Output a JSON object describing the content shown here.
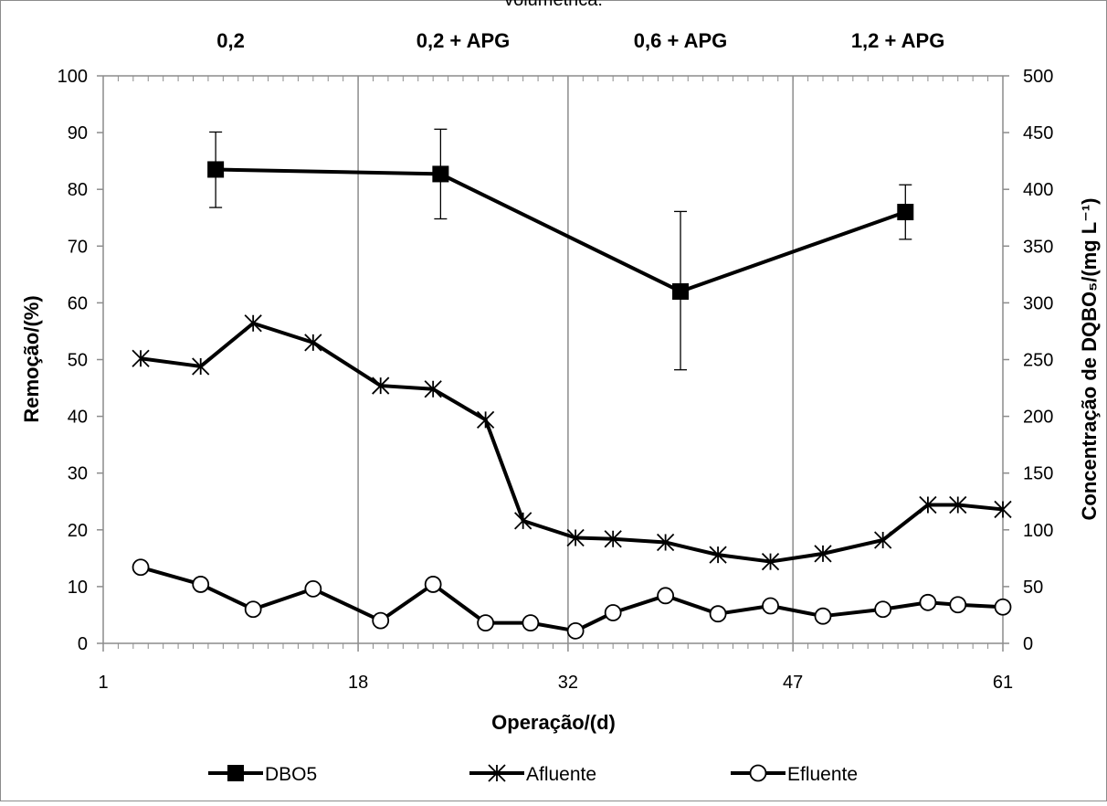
{
  "chart_data": {
    "type": "line",
    "top_caption": "volumétrica:",
    "xlabel": "Operação/(d)",
    "ylabel_left": "Remoção/(%)",
    "ylabel_right": "Concentração de DQBO₅/(mg L⁻¹)",
    "xlim": [
      1,
      61
    ],
    "ylim_left": [
      0,
      100
    ],
    "ylim_right": [
      0,
      500
    ],
    "x_ticks": [
      1,
      18,
      32,
      47,
      61
    ],
    "y_left_ticks": [
      0,
      10,
      20,
      30,
      40,
      50,
      60,
      70,
      80,
      90,
      100
    ],
    "y_right_ticks": [
      0,
      50,
      100,
      150,
      200,
      250,
      300,
      350,
      400,
      450,
      500
    ],
    "phase_dividers": [
      18,
      32,
      47
    ],
    "phases": [
      {
        "label": "0,2",
        "center": 9.5
      },
      {
        "label": "0,2 + APG",
        "center": 25
      },
      {
        "label": "0,6 + APG",
        "center": 39.5
      },
      {
        "label": "1,2 + APG",
        "center": 54
      }
    ],
    "grid": false,
    "legend_position": "bottom",
    "series": [
      {
        "name": "DBO5",
        "axis": "left",
        "marker": "square",
        "color": "#000000",
        "x": [
          8.5,
          23.5,
          39.5,
          54.5
        ],
        "y": [
          83.5,
          82.7,
          62.0,
          76.0
        ],
        "err_low": [
          76.8,
          74.8,
          48.2,
          71.2
        ],
        "err_high": [
          90.1,
          90.6,
          76.1,
          80.8
        ]
      },
      {
        "name": "Afluente",
        "axis": "right",
        "marker": "asterisk",
        "color": "#000000",
        "x": [
          3.5,
          7.5,
          11,
          15,
          19.5,
          23,
          26.5,
          29,
          32.5,
          35,
          38.5,
          42,
          45.5,
          49,
          53,
          56,
          58,
          61
        ],
        "y": [
          251,
          244,
          282,
          265,
          227,
          224,
          197,
          108,
          93,
          92,
          89,
          78,
          72,
          79,
          91,
          122,
          122,
          118
        ]
      },
      {
        "name": "Efluente",
        "axis": "right",
        "marker": "circle",
        "color": "#000000",
        "x": [
          3.5,
          7.5,
          11,
          15,
          19.5,
          23,
          26.5,
          29.5,
          32.5,
          35,
          38.5,
          42,
          45.5,
          49,
          53,
          56,
          58,
          61
        ],
        "y": [
          67,
          52,
          30,
          48,
          20,
          52,
          18,
          18,
          11,
          27,
          42,
          26,
          33,
          24,
          30,
          36,
          34,
          32
        ]
      }
    ]
  }
}
